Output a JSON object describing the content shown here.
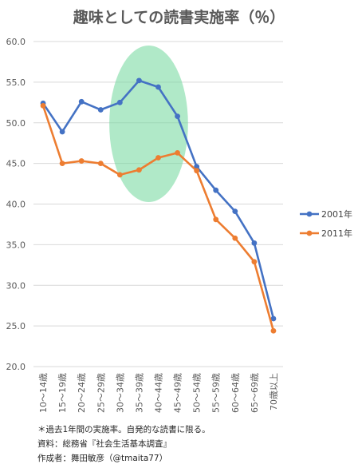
{
  "chart_data": {
    "type": "line",
    "title": "趣味としての読書実施率（％）",
    "xlabel": "",
    "ylabel": "",
    "ylim": [
      20,
      60
    ],
    "yticks": [
      "20.0",
      "25.0",
      "30.0",
      "35.0",
      "40.0",
      "45.0",
      "50.0",
      "55.0",
      "60.0"
    ],
    "grid": true,
    "legend_position": "right",
    "categories": [
      "10～14歳",
      "15～19歳",
      "20～24歳",
      "25～29歳",
      "30～34歳",
      "35～39歳",
      "40～44歳",
      "45～49歳",
      "50～54歳",
      "55～59歳",
      "60～64歳",
      "65～69歳",
      "70歳以上"
    ],
    "series": [
      {
        "name": "2001年",
        "color": "#4472c4",
        "values": [
          52.4,
          48.9,
          52.6,
          51.6,
          52.5,
          55.2,
          54.4,
          50.8,
          44.6,
          41.7,
          39.1,
          35.2,
          25.9
        ]
      },
      {
        "name": "2011年",
        "color": "#ed7d31",
        "values": [
          52.1,
          45.0,
          45.3,
          45.0,
          43.6,
          44.2,
          45.7,
          46.3,
          44.1,
          38.1,
          35.8,
          32.9,
          24.4
        ]
      }
    ],
    "highlight": {
      "type": "ellipse",
      "color": "#70d79a",
      "from_category": "30～34歳",
      "to_category": "45～49歳"
    },
    "notes": [
      "＊過去1年間の実施率。自発的な読書に限る。",
      "資料：総務省『社会生活基本調査』",
      "作成者：舞田敏彦（@tmaita77）"
    ]
  }
}
